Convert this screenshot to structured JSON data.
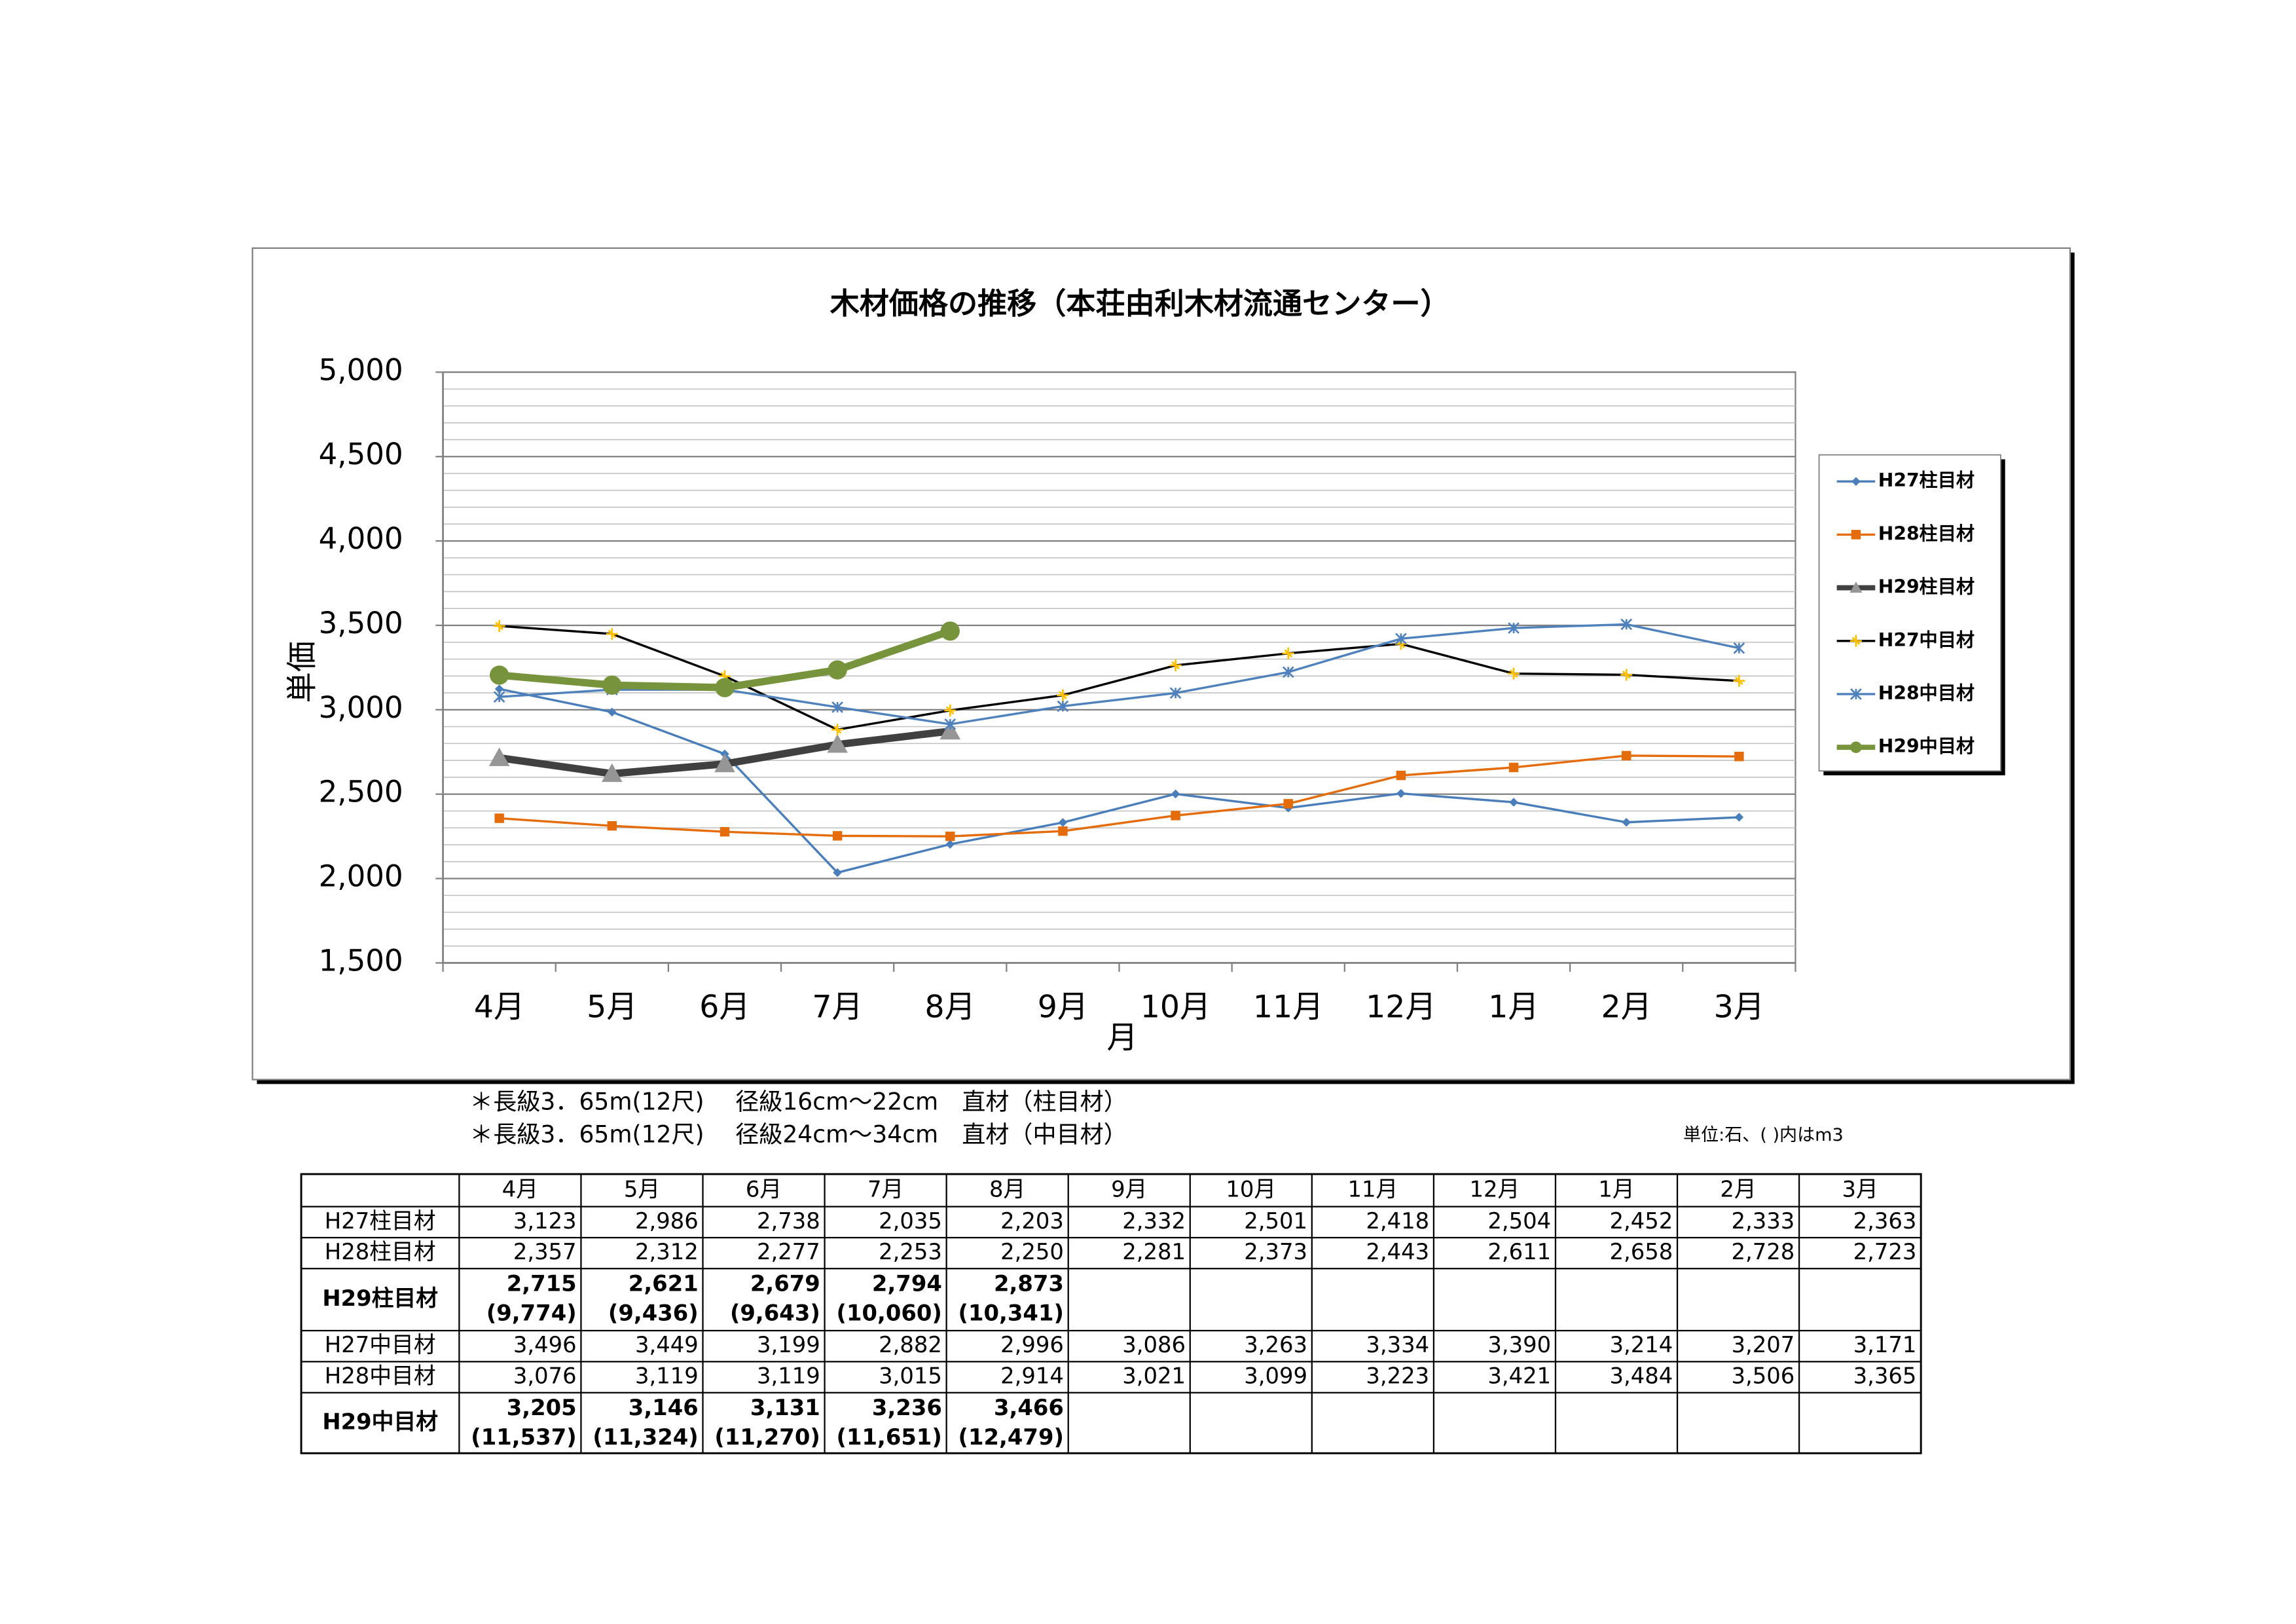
{
  "chart_data": {
    "type": "line",
    "title": "木材価格の推移（本荘由利木材流通センター）",
    "x_label": "月",
    "y_label": "単価",
    "categories": [
      "4月",
      "5月",
      "6月",
      "7月",
      "8月",
      "9月",
      "10月",
      "11月",
      "12月",
      "1月",
      "2月",
      "3月"
    ],
    "series": [
      {
        "name": "H27柱目材",
        "color": "#4a7ebb",
        "marker": "diamond",
        "values": [
          3123,
          2986,
          2738,
          2035,
          2203,
          2332,
          2501,
          2418,
          2504,
          2452,
          2333,
          2363
        ]
      },
      {
        "name": "H28柱目材",
        "color": "#e46c0a",
        "marker": "square",
        "values": [
          2357,
          2312,
          2277,
          2253,
          2250,
          2281,
          2373,
          2443,
          2611,
          2658,
          2728,
          2723
        ]
      },
      {
        "name": "H29柱目材",
        "color": "#404040",
        "marker": "triangle",
        "marker_color": "#969696",
        "values": [
          2715,
          2621,
          2679,
          2794,
          2873,
          null,
          null,
          null,
          null,
          null,
          null,
          null
        ]
      },
      {
        "name": "H27中目材",
        "color": "#000000",
        "marker": "star",
        "marker_color": "#ffc000",
        "values": [
          3496,
          3449,
          3199,
          2882,
          2996,
          3086,
          3263,
          3334,
          3390,
          3214,
          3207,
          3171
        ]
      },
      {
        "name": "H28中目材",
        "color": "#4f81bd",
        "marker": "x",
        "values": [
          3076,
          3119,
          3119,
          3015,
          2914,
          3021,
          3099,
          3223,
          3421,
          3484,
          3506,
          3365
        ]
      },
      {
        "name": "H29中目材",
        "color": "#77933c",
        "marker": "circle",
        "values": [
          3205,
          3146,
          3131,
          3236,
          3466,
          null,
          null,
          null,
          null,
          null,
          null,
          null
        ]
      }
    ],
    "ylim": [
      1500,
      5000
    ],
    "yticks": [
      {
        "value": 1500,
        "label": "1,500"
      },
      {
        "value": 2000,
        "label": "2,000"
      },
      {
        "value": 2500,
        "label": "2,500"
      },
      {
        "value": 3000,
        "label": "3,000"
      },
      {
        "value": 3500,
        "label": "3,500"
      },
      {
        "value": 4000,
        "label": "4,000"
      },
      {
        "value": 4500,
        "label": "4,500"
      },
      {
        "value": 5000,
        "label": "5,000"
      }
    ],
    "grid": true,
    "legend": "right"
  },
  "notes": [
    "＊長級3．65m(12尺)　 径級16cm～22cm　直材（柱目材）",
    "＊長級3．65m(12尺)　 径級24cm～34cm　直材（中目材）"
  ],
  "unit_note": "単位:石、( )内はm3",
  "table": {
    "header": [
      "4月",
      "5月",
      "6月",
      "7月",
      "8月",
      "9月",
      "10月",
      "11月",
      "12月",
      "1月",
      "2月",
      "3月"
    ],
    "rows": [
      {
        "label": "H27柱目材",
        "cells": [
          "3,123",
          "2,986",
          "2,738",
          "2,035",
          "2,203",
          "2,332",
          "2,501",
          "2,418",
          "2,504",
          "2,452",
          "2,333",
          "2,363"
        ]
      },
      {
        "label": "H28柱目材",
        "cells": [
          "2,357",
          "2,312",
          "2,277",
          "2,253",
          "2,250",
          "2,281",
          "2,373",
          "2,443",
          "2,611",
          "2,658",
          "2,728",
          "2,723"
        ]
      },
      {
        "label": "H29柱目材",
        "cells": [
          [
            "2,715",
            "(9,774)"
          ],
          [
            "2,621",
            "(9,436)"
          ],
          [
            "2,679",
            "(9,643)"
          ],
          [
            "2,794",
            "(10,060)"
          ],
          [
            "2,873",
            "(10,341)"
          ]
        ]
      },
      {
        "label": "H27中目材",
        "cells": [
          "3,496",
          "3,449",
          "3,199",
          "2,882",
          "2,996",
          "3,086",
          "3,263",
          "3,334",
          "3,390",
          "3,214",
          "3,207",
          "3,171"
        ]
      },
      {
        "label": "H28中目材",
        "cells": [
          "3,076",
          "3,119",
          "3,119",
          "3,015",
          "2,914",
          "3,021",
          "3,099",
          "3,223",
          "3,421",
          "3,484",
          "3,506",
          "3,365"
        ]
      },
      {
        "label": "H29中目材",
        "cells": [
          [
            "3,205",
            "(11,537)"
          ],
          [
            "3,146",
            "(11,324)"
          ],
          [
            "3,131",
            "(11,270)"
          ],
          [
            "3,236",
            "(11,651)"
          ],
          [
            "3,466",
            "(12,479)"
          ]
        ]
      }
    ]
  }
}
